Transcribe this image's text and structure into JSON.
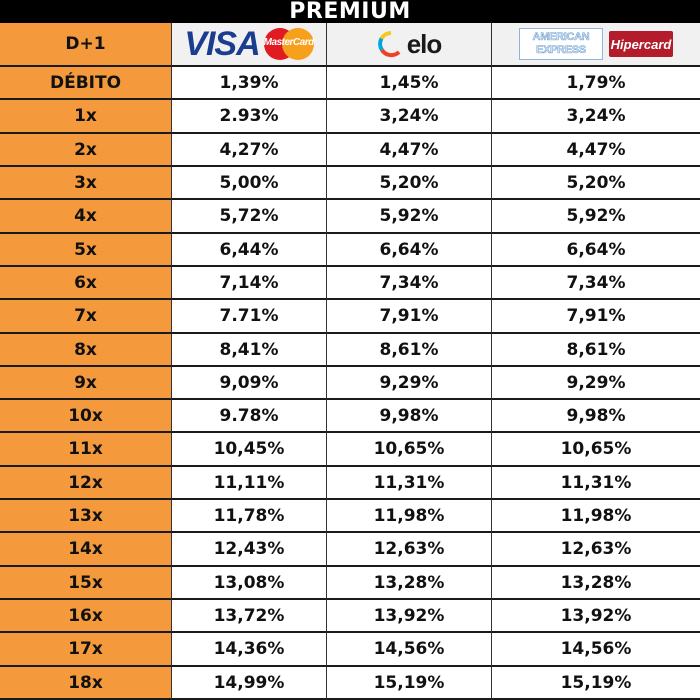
{
  "title": "PREMIUM",
  "header": {
    "label": "D+1",
    "brands": {
      "visa": "VISA",
      "mastercard": "MasterCard",
      "elo": "elo",
      "amex_line1": "AMERICAN",
      "amex_line2": "EXPRESS",
      "hipercard": "Hipercard"
    }
  },
  "rows": [
    {
      "label": "DÉBITO",
      "c1": "1,39%",
      "c2": "1,45%",
      "c3": "1,79%"
    },
    {
      "label": "1x",
      "c1": "2.93%",
      "c2": "3,24%",
      "c3": "3,24%"
    },
    {
      "label": "2x",
      "c1": "4,27%",
      "c2": "4,47%",
      "c3": "4,47%"
    },
    {
      "label": "3x",
      "c1": "5,00%",
      "c2": "5,20%",
      "c3": "5,20%"
    },
    {
      "label": "4x",
      "c1": "5,72%",
      "c2": "5,92%",
      "c3": "5,92%"
    },
    {
      "label": "5x",
      "c1": "6,44%",
      "c2": "6,64%",
      "c3": "6,64%"
    },
    {
      "label": "6x",
      "c1": "7,14%",
      "c2": "7,34%",
      "c3": "7,34%"
    },
    {
      "label": "7x",
      "c1": "7.71%",
      "c2": "7,91%",
      "c3": "7,91%"
    },
    {
      "label": "8x",
      "c1": "8,41%",
      "c2": "8,61%",
      "c3": "8,61%"
    },
    {
      "label": "9x",
      "c1": "9,09%",
      "c2": "9,29%",
      "c3": "9,29%"
    },
    {
      "label": "10x",
      "c1": "9.78%",
      "c2": "9,98%",
      "c3": "9,98%"
    },
    {
      "label": "11x",
      "c1": "10,45%",
      "c2": "10,65%",
      "c3": "10,65%"
    },
    {
      "label": "12x",
      "c1": "11,11%",
      "c2": "11,31%",
      "c3": "11,31%"
    },
    {
      "label": "13x",
      "c1": "11,78%",
      "c2": "11,98%",
      "c3": "11,98%"
    },
    {
      "label": "14x",
      "c1": "12,43%",
      "c2": "12,63%",
      "c3": "12,63%"
    },
    {
      "label": "15x",
      "c1": "13,08%",
      "c2": "13,28%",
      "c3": "13,28%"
    },
    {
      "label": "16x",
      "c1": "13,72%",
      "c2": "13,92%",
      "c3": "13,92%"
    },
    {
      "label": "17x",
      "c1": "14,36%",
      "c2": "14,56%",
      "c3": "14,56%"
    },
    {
      "label": "18x",
      "c1": "14,99%",
      "c2": "15,19%",
      "c3": "15,19%"
    }
  ],
  "colors": {
    "label_column": "#f59a3c",
    "title_bar": "#000000",
    "visa_blue": "#1a3d8f",
    "mastercard_red": "#e11b22",
    "mastercard_yellow": "#f7a01b",
    "hipercard_red": "#b31d2b"
  }
}
